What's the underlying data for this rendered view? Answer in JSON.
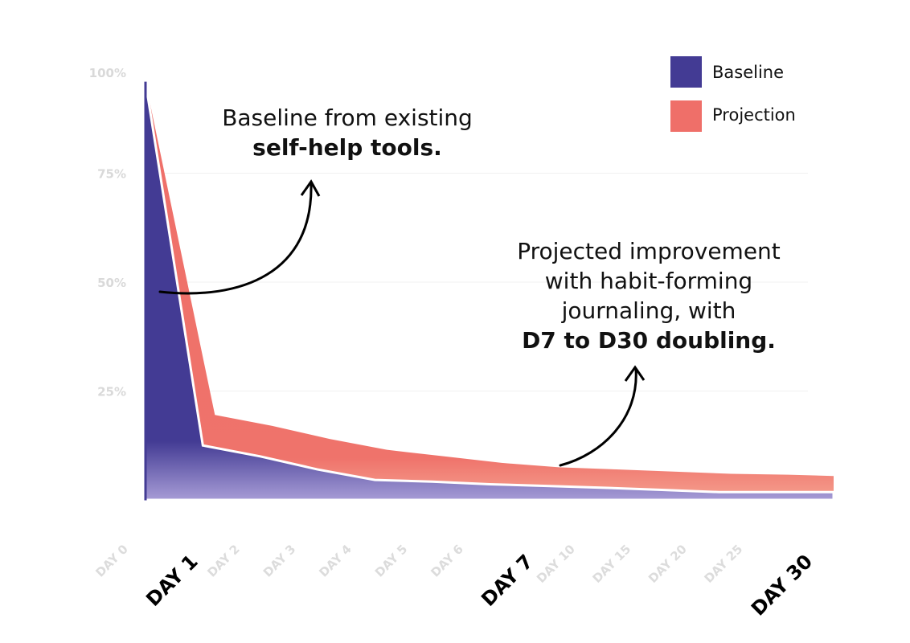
{
  "chart_data": {
    "type": "area",
    "title": "",
    "xlabel": "",
    "ylabel": "",
    "ylim": [
      0,
      100
    ],
    "yticks": [
      "25%",
      "50%",
      "75%",
      "100%"
    ],
    "ytick_values": [
      25,
      50,
      75,
      100
    ],
    "grid": true,
    "categories": [
      "DAY 0",
      "DAY 1",
      "DAY 2",
      "DAY 3",
      "DAY 4",
      "DAY 5",
      "DAY 6",
      "DAY 7",
      "DAY 10",
      "DAY 15",
      "DAY 20",
      "DAY 25",
      "DAY 30"
    ],
    "highlighted_categories": [
      "DAY 1",
      "DAY 7",
      "DAY 30"
    ],
    "series": [
      {
        "name": "Projection",
        "color": "#ef6f69",
        "values": [
          96,
          19.5,
          17,
          14,
          11.5,
          10,
          8.5,
          7.5,
          7,
          6.5,
          6,
          5.8,
          5.5
        ]
      },
      {
        "name": "Baseline",
        "color": "#433b94",
        "values": [
          96,
          12.5,
          10,
          7,
          4.6,
          4.2,
          3.6,
          3.2,
          2.8,
          2.3,
          1.8,
          1.8,
          1.8
        ]
      }
    ],
    "legend": {
      "position": "top-right",
      "entries": [
        {
          "label": "Baseline",
          "color": "#433b94"
        },
        {
          "label": "Projection",
          "color": "#ef6f69"
        }
      ]
    },
    "annotations": [
      {
        "lines": [
          "Baseline from existing"
        ],
        "bold": "self-help tools.",
        "target": "Baseline"
      },
      {
        "lines": [
          "Projected improvement",
          "with habit-forming",
          "journaling, with"
        ],
        "bold": "D7 to D30 doubling.",
        "target": "Projection"
      }
    ]
  }
}
